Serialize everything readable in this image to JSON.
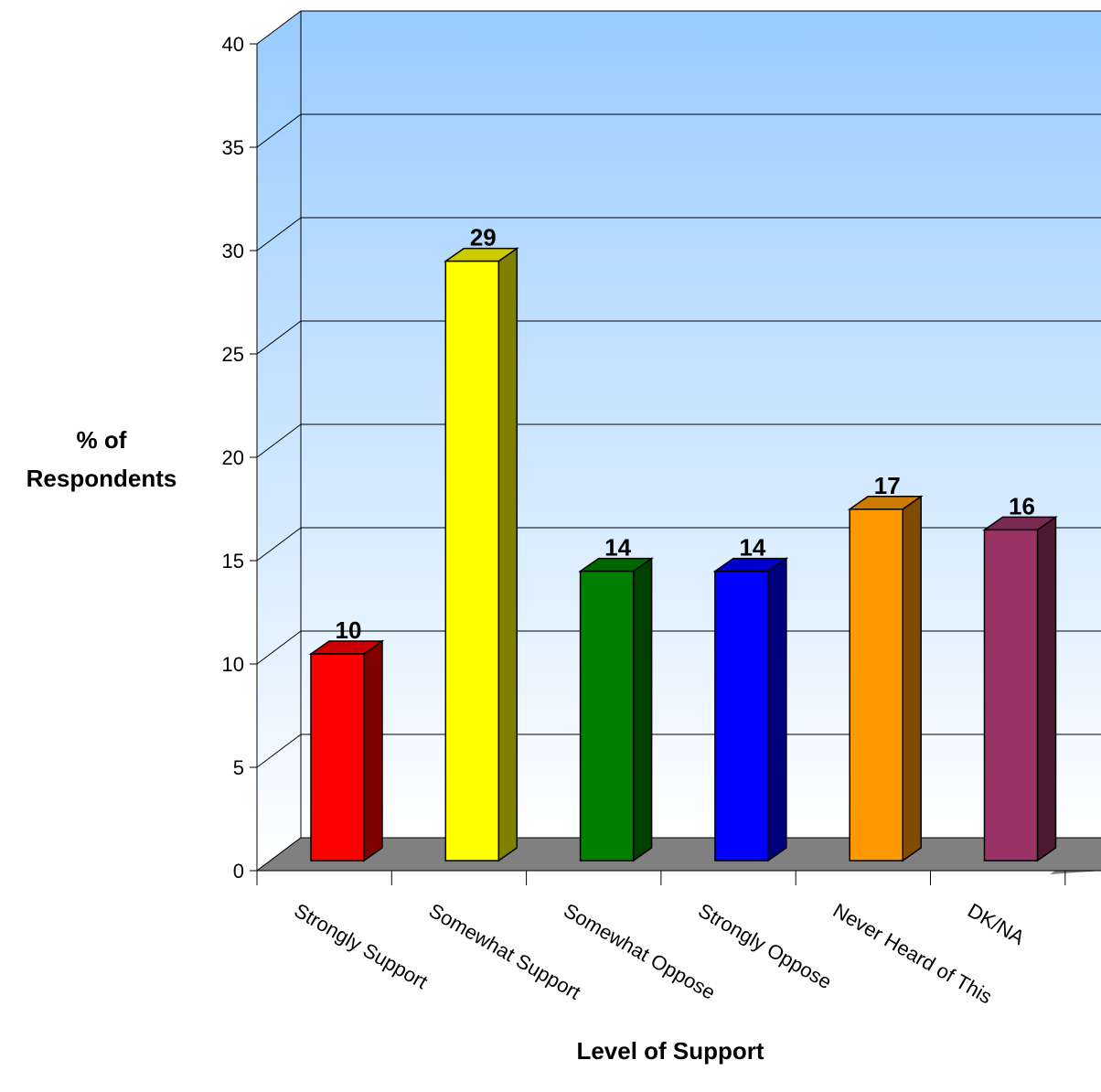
{
  "chart_data": {
    "type": "bar",
    "style": "3d",
    "categories": [
      "Strongly Support",
      "Somewhat Support",
      "Somewhat Oppose",
      "Strongly Oppose",
      "Never Heard of This",
      "DK/NA"
    ],
    "values": [
      10,
      29,
      14,
      14,
      17,
      16
    ],
    "data_labels": [
      "10",
      "29",
      "14",
      "14",
      "17",
      "16"
    ],
    "ylabel": "% of Respondents",
    "xlabel": "Level of Support",
    "ylim": [
      0,
      40
    ],
    "yticks": [
      "0",
      "5",
      "10",
      "15",
      "20",
      "25",
      "30",
      "35",
      "40"
    ],
    "grid": true,
    "legend": "none",
    "colors": {
      "front": [
        "#FF0000",
        "#FFFF00",
        "#008000",
        "#0000FF",
        "#FF9900",
        "#993366"
      ],
      "side": [
        "#7F0000",
        "#7F7F00",
        "#004000",
        "#00007F",
        "#7F4C00",
        "#4C1933"
      ],
      "top": [
        "#CC0000",
        "#CCCC00",
        "#006600",
        "#0000CC",
        "#CC7A00",
        "#7A2952"
      ],
      "floor": "#808080",
      "wall_top": "#99CCFF",
      "wall_bottom": "#FFFFFF"
    }
  }
}
